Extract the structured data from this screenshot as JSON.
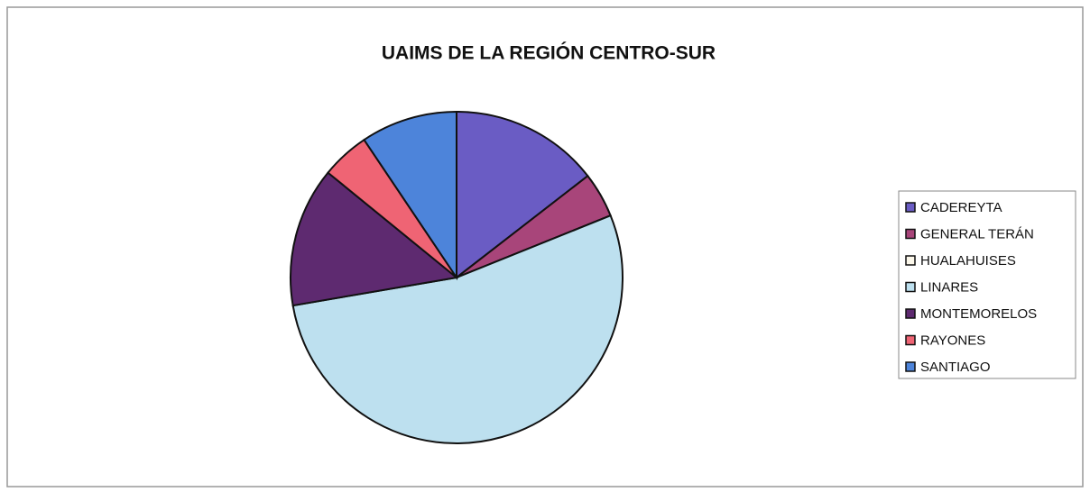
{
  "chart_data": {
    "type": "pie",
    "title": "UAIMS DE LA REGIÓN CENTRO-SUR",
    "categories": [
      "CADEREYTA",
      "GENERAL TERÁN",
      "HUALAHUISES",
      "LINARES",
      "MONTEMORELOS",
      "RAYONES",
      "SANTIAGO"
    ],
    "values": [
      14.5,
      4.4,
      0,
      53.4,
      13.6,
      4.7,
      9.4
    ],
    "colors": [
      "#6a5cc4",
      "#a8457a",
      "#fbf7ea",
      "#bde0ef",
      "#5e2a70",
      "#ef6474",
      "#4d84da"
    ],
    "legend": "right"
  }
}
